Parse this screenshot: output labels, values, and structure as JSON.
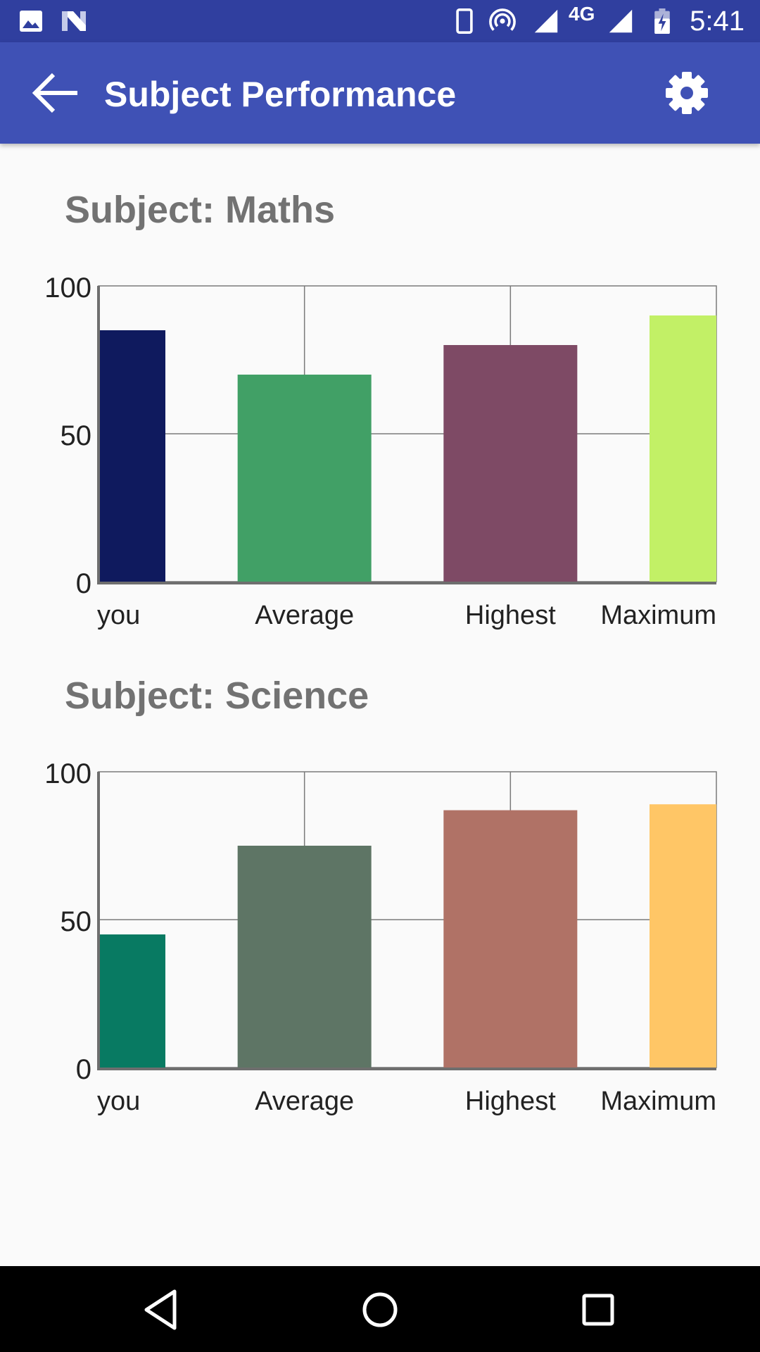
{
  "status_bar": {
    "time": "5:41",
    "network_label": "4G",
    "icons": [
      "image-icon",
      "n-app-icon",
      "phone-icon",
      "hotspot-icon",
      "signal-icon",
      "signal-icon",
      "battery-charging-icon"
    ]
  },
  "app_bar": {
    "title": "Subject Performance",
    "back_icon": "arrow-left-icon",
    "settings_icon": "gear-icon",
    "color": "#3f51b5",
    "status_color": "#303f9f"
  },
  "sections": [
    {
      "title": "Subject: Maths"
    },
    {
      "title": "Subject: Science"
    }
  ],
  "chart_data": [
    {
      "type": "bar",
      "title": "Subject: Maths",
      "categories": [
        "you",
        "Average",
        "Highest",
        "Maximum"
      ],
      "values": [
        85,
        70,
        80,
        90
      ],
      "colors": [
        "#0f1a5e",
        "#41a066",
        "#7e4a65",
        "#c2f066"
      ],
      "ylim": [
        0,
        100
      ],
      "yticks": [
        "0",
        "50",
        "100"
      ],
      "grid": true,
      "xlabel": "",
      "ylabel": ""
    },
    {
      "type": "bar",
      "title": "Subject: Science",
      "categories": [
        "you",
        "Average",
        "Highest",
        "Maximum"
      ],
      "values": [
        45,
        75,
        87,
        89
      ],
      "colors": [
        "#087a62",
        "#5e7565",
        "#b07266",
        "#ffc666"
      ],
      "ylim": [
        0,
        100
      ],
      "yticks": [
        "0",
        "50",
        "100"
      ],
      "grid": true,
      "xlabel": "",
      "ylabel": ""
    }
  ],
  "nav_bar": {
    "back_icon": "triangle-back-icon",
    "home_icon": "circle-home-icon",
    "recents_icon": "square-recents-icon"
  }
}
